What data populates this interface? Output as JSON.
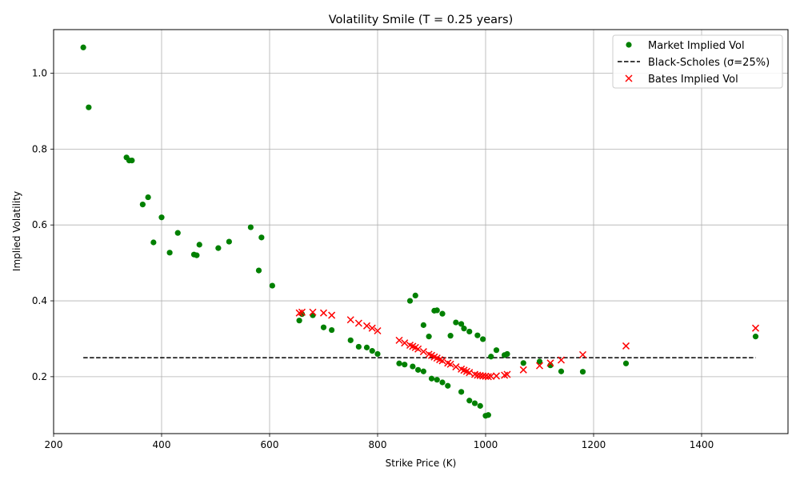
{
  "chart_data": {
    "type": "scatter",
    "title": "Volatility Smile (T = 0.25 years)",
    "xlabel": "Strike Price (K)",
    "ylabel": "Implied Volatility",
    "xlim": [
      200,
      1560
    ],
    "ylim": [
      0.05,
      1.115
    ],
    "xticks": [
      200,
      400,
      600,
      800,
      1000,
      1200,
      1400
    ],
    "yticks": [
      0.2,
      0.4,
      0.6,
      0.8,
      1.0
    ],
    "xtick_labels": [
      "200",
      "400",
      "600",
      "800",
      "1000",
      "1200",
      "1400"
    ],
    "ytick_labels": [
      "0.2",
      "0.4",
      "0.6",
      "0.8",
      "1.0"
    ],
    "grid": true,
    "legend_position": "top-right",
    "colors": {
      "market": "#008000",
      "bs": "#000000",
      "bates": "#ff0000"
    },
    "legend": [
      {
        "label": "Market Implied Vol",
        "kind": "dot"
      },
      {
        "label": "Black-Scholes (σ=25%)",
        "kind": "dash"
      },
      {
        "label": "Bates Implied Vol",
        "kind": "cross"
      }
    ],
    "market": {
      "name": "Market Implied Vol",
      "points": [
        [
          255,
          1.068
        ],
        [
          265,
          0.91
        ],
        [
          335,
          0.778
        ],
        [
          340,
          0.77
        ],
        [
          345,
          0.77
        ],
        [
          365,
          0.654
        ],
        [
          375,
          0.673
        ],
        [
          385,
          0.554
        ],
        [
          400,
          0.62
        ],
        [
          415,
          0.527
        ],
        [
          430,
          0.579
        ],
        [
          460,
          0.522
        ],
        [
          465,
          0.52
        ],
        [
          470,
          0.548
        ],
        [
          505,
          0.539
        ],
        [
          525,
          0.556
        ],
        [
          565,
          0.594
        ],
        [
          580,
          0.48
        ],
        [
          585,
          0.567
        ],
        [
          605,
          0.44
        ],
        [
          655,
          0.348
        ],
        [
          660,
          0.365
        ],
        [
          680,
          0.362
        ],
        [
          700,
          0.33
        ],
        [
          715,
          0.323
        ],
        [
          750,
          0.296
        ],
        [
          765,
          0.279
        ],
        [
          780,
          0.277
        ],
        [
          790,
          0.268
        ],
        [
          800,
          0.26
        ],
        [
          840,
          0.235
        ],
        [
          850,
          0.232
        ],
        [
          865,
          0.227
        ],
        [
          875,
          0.218
        ],
        [
          885,
          0.214
        ],
        [
          885,
          0.336
        ],
        [
          895,
          0.306
        ],
        [
          900,
          0.195
        ],
        [
          905,
          0.374
        ],
        [
          910,
          0.375
        ],
        [
          910,
          0.192
        ],
        [
          920,
          0.185
        ],
        [
          920,
          0.366
        ],
        [
          930,
          0.176
        ],
        [
          935,
          0.308
        ],
        [
          945,
          0.343
        ],
        [
          955,
          0.339
        ],
        [
          955,
          0.16
        ],
        [
          960,
          0.327
        ],
        [
          970,
          0.319
        ],
        [
          970,
          0.137
        ],
        [
          980,
          0.13
        ],
        [
          985,
          0.309
        ],
        [
          990,
          0.123
        ],
        [
          995,
          0.299
        ],
        [
          1000,
          0.097
        ],
        [
          1005,
          0.099
        ],
        [
          1010,
          0.253
        ],
        [
          1020,
          0.27
        ],
        [
          1035,
          0.257
        ],
        [
          1040,
          0.26
        ],
        [
          1070,
          0.236
        ],
        [
          1100,
          0.24
        ],
        [
          1120,
          0.23
        ],
        [
          1140,
          0.214
        ],
        [
          1180,
          0.213
        ],
        [
          1260,
          0.235
        ],
        [
          1500,
          0.306
        ],
        [
          860,
          0.4
        ],
        [
          870,
          0.414
        ]
      ]
    },
    "black_scholes": {
      "name": "Black-Scholes (σ=25%)",
      "x": [
        255,
        1500
      ],
      "sigma": 0.25
    },
    "bates": {
      "name": "Bates Implied Vol",
      "points": [
        [
          655,
          0.368
        ],
        [
          660,
          0.37
        ],
        [
          680,
          0.37
        ],
        [
          700,
          0.368
        ],
        [
          715,
          0.362
        ],
        [
          750,
          0.35
        ],
        [
          765,
          0.341
        ],
        [
          780,
          0.334
        ],
        [
          790,
          0.328
        ],
        [
          800,
          0.321
        ],
        [
          840,
          0.296
        ],
        [
          850,
          0.289
        ],
        [
          860,
          0.283
        ],
        [
          865,
          0.28
        ],
        [
          870,
          0.277
        ],
        [
          875,
          0.273
        ],
        [
          885,
          0.266
        ],
        [
          895,
          0.259
        ],
        [
          900,
          0.256
        ],
        [
          905,
          0.252
        ],
        [
          910,
          0.249
        ],
        [
          915,
          0.245
        ],
        [
          920,
          0.242
        ],
        [
          930,
          0.236
        ],
        [
          935,
          0.233
        ],
        [
          945,
          0.226
        ],
        [
          955,
          0.22
        ],
        [
          960,
          0.217
        ],
        [
          965,
          0.214
        ],
        [
          970,
          0.211
        ],
        [
          980,
          0.206
        ],
        [
          985,
          0.204
        ],
        [
          990,
          0.203
        ],
        [
          995,
          0.202
        ],
        [
          1000,
          0.201
        ],
        [
          1005,
          0.2
        ],
        [
          1010,
          0.201
        ],
        [
          1020,
          0.202
        ],
        [
          1035,
          0.204
        ],
        [
          1040,
          0.206
        ],
        [
          1070,
          0.218
        ],
        [
          1100,
          0.229
        ],
        [
          1120,
          0.236
        ],
        [
          1140,
          0.244
        ],
        [
          1180,
          0.258
        ],
        [
          1260,
          0.281
        ],
        [
          1500,
          0.328
        ]
      ]
    }
  }
}
